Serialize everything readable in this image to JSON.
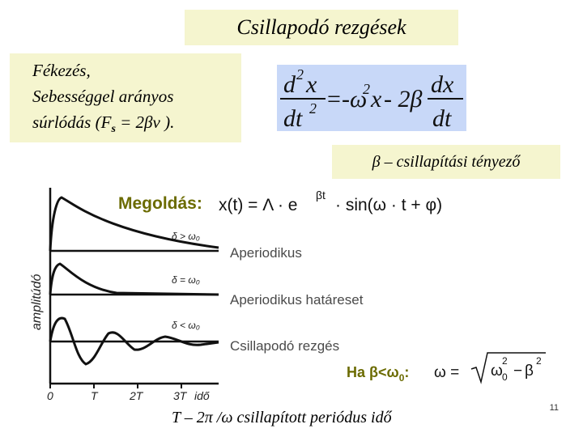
{
  "title": "Csillapodó  rezgések",
  "friction": {
    "line1": "Fékezés,",
    "line2": "Sebességgel arányos",
    "line3_pre": "súrlódás (F",
    "line3_sub": "s",
    "line3_post": " = 2βv )."
  },
  "equation": {
    "d_top_left": "d",
    "exp_top_left": "2",
    "x_top_left": "x",
    "d_bottom_left": "dt",
    "exp_bottom_left": "2",
    "equals": "=",
    "omega": "-ω",
    "omega_exp": "2",
    "x_mid": "x",
    "minus_2beta": "- 2β",
    "dx": "dx",
    "dt": "dt"
  },
  "beta_label": "β – csillapítási tényező",
  "figure": {
    "solution_label": "Megoldás:",
    "solution_formula_left": "x(t) = Λ · e",
    "solution_formula_exp": "βt",
    "solution_formula_right": "· sin(ω · t + φ)",
    "y_axis_label": "amplitúdó",
    "curve1_annot": "δ > ω₀",
    "curve2_annot": "δ = ω₀",
    "curve3_annot": "δ < ω₀",
    "label_aperiodic": "Aperiodikus",
    "label_limit": "Aperiodikus határeset",
    "label_damped": "Csillapodó rezgés",
    "x_ticks": [
      "0",
      "T",
      "2T",
      "3T",
      "idő"
    ],
    "condition_label": "Ha ",
    "condition_beta": "β<ω",
    "condition_sub": "0",
    "condition_colon": ":",
    "omega_formula_left": "ω =",
    "omega_formula_rad_a": "ω",
    "omega_formula_rad_a_exp": "2",
    "omega_formula_rad_a_sub": "0",
    "omega_formula_minus": "−",
    "omega_formula_rad_b": "β",
    "omega_formula_rad_b_exp": "2"
  },
  "bottom_label": "T – 2π /ω  csillapított periódus idő",
  "page_number": "11",
  "colors": {
    "yellow_box": "#f5f5cf",
    "blue_box": "#c8d8f8",
    "olive_text": "#6b6b00",
    "grey_text": "#4a4a4a"
  }
}
